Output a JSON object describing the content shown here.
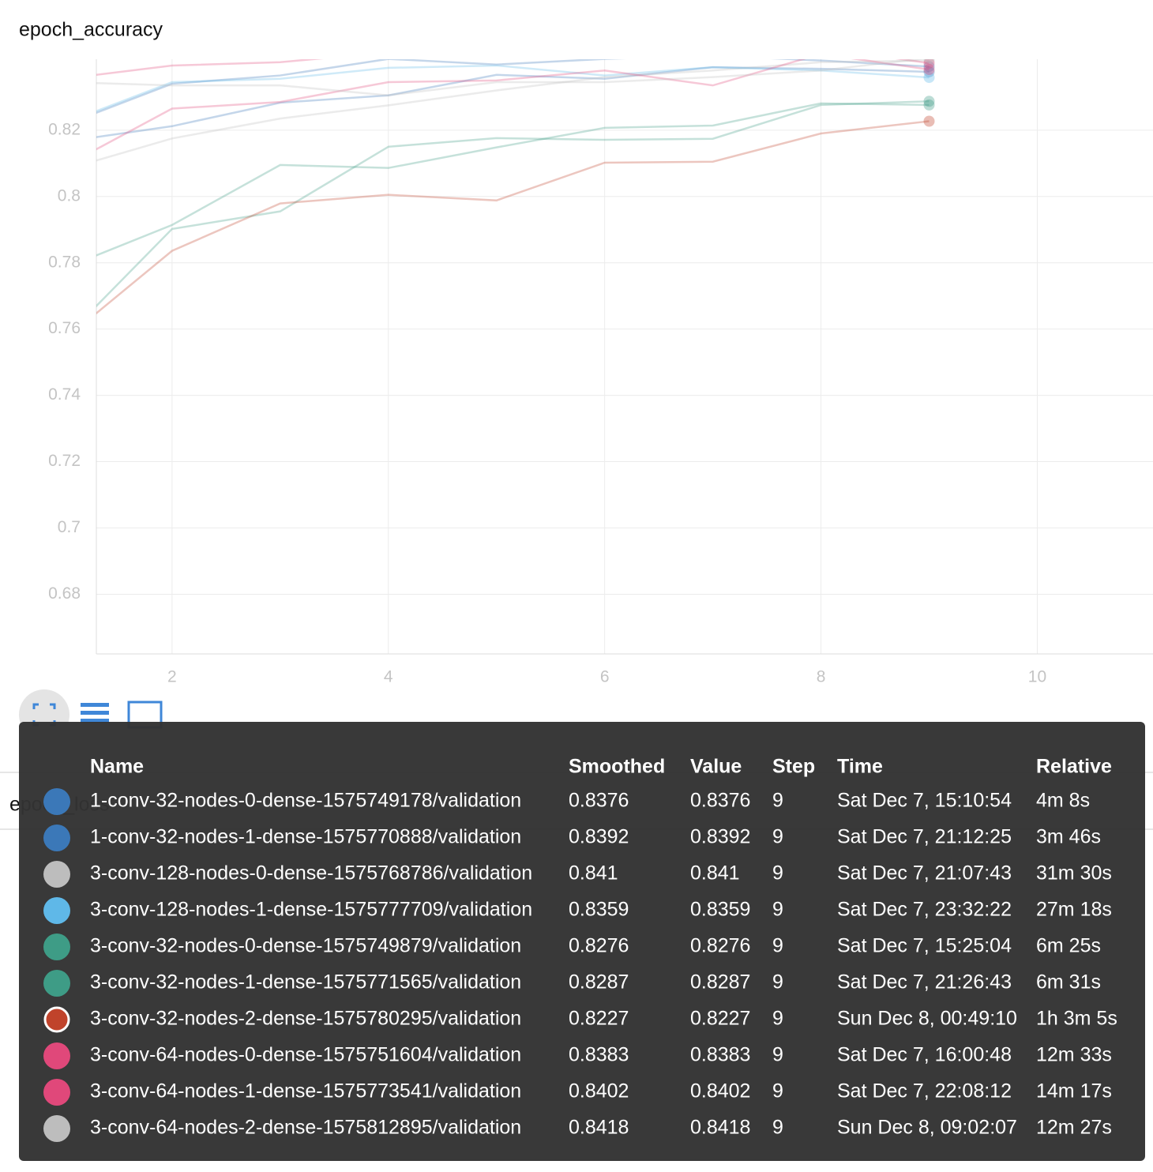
{
  "chart_data": {
    "type": "line",
    "title": "epoch_accuracy",
    "x": [
      1,
      2,
      3,
      4,
      5,
      6,
      7,
      8,
      9
    ],
    "xlim": [
      1.3,
      11.07
    ],
    "xticks": [
      2,
      4,
      6,
      8,
      10
    ],
    "ylim": [
      0.662,
      0.8414
    ],
    "yticks": [
      0.68,
      0.7,
      0.72,
      0.74,
      0.76,
      0.78,
      0.8,
      0.82
    ],
    "grid": true,
    "series": [
      {
        "name": "1-conv-32-nodes-0-dense-1575749178/validation",
        "color": "#3b78b8",
        "values": [
          0.8165,
          0.8212,
          0.8283,
          0.8305,
          0.8367,
          0.8355,
          0.839,
          0.8385,
          0.8376
        ]
      },
      {
        "name": "1-conv-32-nodes-1-dense-1575770888/validation",
        "color": "#3b78b8",
        "values": [
          0.8215,
          0.834,
          0.8365,
          0.8415,
          0.8398,
          0.8415,
          0.8425,
          0.841,
          0.8392
        ]
      },
      {
        "name": "3-conv-128-nodes-0-dense-1575768786/validation",
        "color": "#bdbdbd",
        "values": [
          0.808,
          0.8175,
          0.8235,
          0.8275,
          0.832,
          0.836,
          0.838,
          0.8405,
          0.841
        ]
      },
      {
        "name": "3-conv-128-nodes-1-dense-1575777709/validation",
        "color": "#5fb8e8",
        "values": [
          0.822,
          0.8345,
          0.8355,
          0.8388,
          0.8395,
          0.8365,
          0.839,
          0.838,
          0.8359
        ]
      },
      {
        "name": "3-conv-32-nodes-0-dense-1575749879/validation",
        "color": "#3e9c86",
        "values": [
          0.7783,
          0.7914,
          0.8095,
          0.8086,
          0.8148,
          0.8207,
          0.8214,
          0.8281,
          0.8276
        ]
      },
      {
        "name": "3-conv-32-nodes-1-dense-1575771565/validation",
        "color": "#3e9c86",
        "values": [
          0.757,
          0.7902,
          0.7955,
          0.815,
          0.8176,
          0.8171,
          0.8174,
          0.8276,
          0.8287
        ]
      },
      {
        "name": "3-conv-32-nodes-2-dense-1575780295/validation",
        "color": "#c0432b",
        "values": [
          0.7567,
          0.7836,
          0.7979,
          0.8005,
          0.7988,
          0.8102,
          0.8105,
          0.819,
          0.8227
        ]
      },
      {
        "name": "3-conv-64-nodes-0-dense-1575751604/validation",
        "color": "#e0487a",
        "values": [
          0.809,
          0.8265,
          0.8285,
          0.8345,
          0.835,
          0.838,
          0.8335,
          0.843,
          0.8383
        ]
      },
      {
        "name": "3-conv-64-nodes-1-dense-1575773541/validation",
        "color": "#e0487a",
        "values": [
          0.8355,
          0.8395,
          0.8405,
          0.8435,
          0.845,
          0.846,
          0.846,
          0.845,
          0.8402
        ]
      },
      {
        "name": "3-conv-64-nodes-2-dense-1575812895/validation",
        "color": "#bdbdbd",
        "values": [
          0.8345,
          0.8335,
          0.8335,
          0.8305,
          0.8345,
          0.8345,
          0.836,
          0.838,
          0.8418
        ]
      }
    ]
  },
  "next_card": {
    "title": "epoch_loss"
  },
  "tooltip": {
    "columns": [
      "Name",
      "Smoothed",
      "Value",
      "Step",
      "Time",
      "Relative"
    ],
    "rows": [
      {
        "smoothed": 0.8376,
        "value": 0.8376,
        "step": 9,
        "time": "Sat Dec 7, 15:10:54",
        "relative": "4m 8s"
      },
      {
        "smoothed": 0.8392,
        "value": 0.8392,
        "step": 9,
        "time": "Sat Dec 7, 21:12:25",
        "relative": "3m 46s"
      },
      {
        "smoothed": 0.841,
        "value": 0.841,
        "step": 9,
        "time": "Sat Dec 7, 21:07:43",
        "relative": "31m 30s"
      },
      {
        "smoothed": 0.8359,
        "value": 0.8359,
        "step": 9,
        "time": "Sat Dec 7, 23:32:22",
        "relative": "27m 18s"
      },
      {
        "smoothed": 0.8276,
        "value": 0.8276,
        "step": 9,
        "time": "Sat Dec 7, 15:25:04",
        "relative": "6m 25s"
      },
      {
        "smoothed": 0.8287,
        "value": 0.8287,
        "step": 9,
        "time": "Sat Dec 7, 21:26:43",
        "relative": "6m 31s"
      },
      {
        "smoothed": 0.8227,
        "value": 0.8227,
        "step": 9,
        "time": "Sun Dec 8, 00:49:10",
        "relative": "1h 3m 5s"
      },
      {
        "smoothed": 0.8383,
        "value": 0.8383,
        "step": 9,
        "time": "Sat Dec 7, 16:00:48",
        "relative": "12m 33s"
      },
      {
        "smoothed": 0.8402,
        "value": 0.8402,
        "step": 9,
        "time": "Sat Dec 7, 22:08:12",
        "relative": "14m 17s"
      },
      {
        "smoothed": 0.8418,
        "value": 0.8418,
        "step": 9,
        "time": "Sun Dec 8, 09:02:07",
        "relative": "12m 27s"
      }
    ],
    "highlight": 6
  }
}
